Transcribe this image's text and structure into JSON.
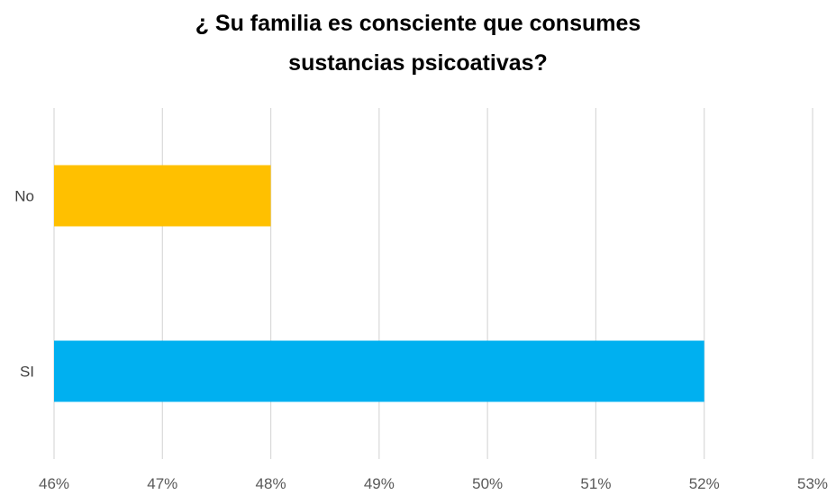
{
  "chart_data": {
    "type": "bar",
    "orientation": "horizontal",
    "title_lines": [
      "¿ Su familia es consciente que consumes",
      "sustancias psicoativas?"
    ],
    "categories": [
      "No",
      "SI"
    ],
    "values": [
      48,
      52
    ],
    "xlim": [
      46,
      53
    ],
    "xticks": [
      "46%",
      "47%",
      "48%",
      "49%",
      "50%",
      "51%",
      "52%",
      "53%"
    ],
    "bar_colors": [
      "#FFC000",
      "#00B0F0"
    ],
    "grid": "vertical",
    "legend": "none"
  }
}
